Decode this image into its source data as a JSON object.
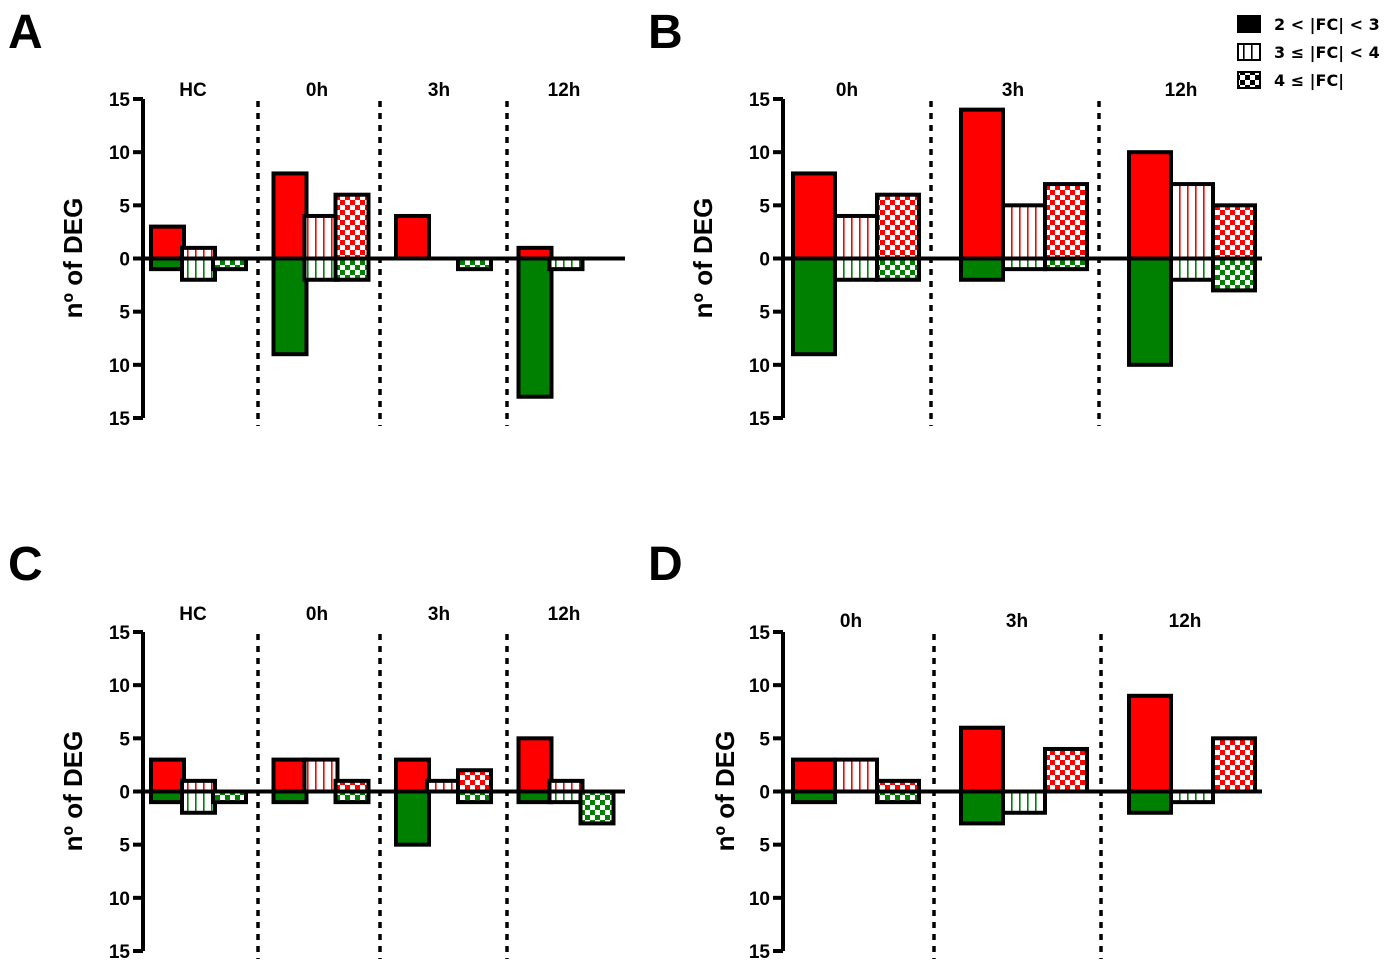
{
  "legend": {
    "position": "top-right",
    "items": [
      {
        "label": "2 < |FC| < 3",
        "pattern": "solid"
      },
      {
        "label": "3 ≤ |FC| < 4",
        "pattern": "vstripe"
      },
      {
        "label": "4 ≤ |FC|",
        "pattern": "checker"
      }
    ]
  },
  "colors": {
    "up": "#ff0000",
    "down": "#008000",
    "outline": "#000000"
  },
  "chart_data": [
    {
      "type": "bar",
      "panel": "A",
      "ylabel": "nº of DEG",
      "ylim": [
        -15,
        15
      ],
      "yticks": [
        "15",
        "10",
        "5",
        "0",
        "5",
        "10",
        "15"
      ],
      "groups": [
        "HC",
        "0h",
        "3h",
        "12h"
      ],
      "series": [
        {
          "name": "2 < |FC| < 3",
          "up": [
            3,
            8,
            4,
            1
          ],
          "down": [
            -1,
            -9,
            0,
            -13
          ]
        },
        {
          "name": "3 ≤ |FC| < 4",
          "up": [
            1,
            4,
            0,
            0
          ],
          "down": [
            -2,
            -2,
            0,
            -1
          ]
        },
        {
          "name": "4 ≤ |FC|",
          "up": [
            0,
            6,
            0,
            0
          ],
          "down": [
            -1,
            -2,
            -1,
            0
          ]
        }
      ]
    },
    {
      "type": "bar",
      "panel": "B",
      "ylabel": "nº of DEG",
      "ylim": [
        -15,
        15
      ],
      "yticks": [
        "15",
        "10",
        "5",
        "0",
        "5",
        "10",
        "15"
      ],
      "groups": [
        "0h",
        "3h",
        "12h"
      ],
      "series": [
        {
          "name": "2 < |FC| < 3",
          "up": [
            8,
            14,
            10
          ],
          "down": [
            -9,
            -2,
            -10
          ]
        },
        {
          "name": "3 ≤ |FC| < 4",
          "up": [
            4,
            5,
            7
          ],
          "down": [
            -2,
            -1,
            -2
          ]
        },
        {
          "name": "4 ≤ |FC|",
          "up": [
            6,
            7,
            5
          ],
          "down": [
            -2,
            -1,
            -3
          ]
        }
      ]
    },
    {
      "type": "bar",
      "panel": "C",
      "ylabel": "nº of DEG",
      "ylim": [
        -15,
        15
      ],
      "yticks": [
        "15",
        "10",
        "5",
        "0",
        "5",
        "10",
        "15"
      ],
      "groups": [
        "HC",
        "0h",
        "3h",
        "12h"
      ],
      "series": [
        {
          "name": "2 < |FC| < 3",
          "up": [
            3,
            3,
            3,
            5
          ],
          "down": [
            -1,
            -1,
            -5,
            -1
          ]
        },
        {
          "name": "3 ≤ |FC| < 4",
          "up": [
            1,
            3,
            1,
            1
          ],
          "down": [
            -2,
            0,
            0,
            -1
          ]
        },
        {
          "name": "4 ≤ |FC|",
          "up": [
            0,
            1,
            2,
            0
          ],
          "down": [
            -1,
            -1,
            -1,
            -3
          ]
        }
      ]
    },
    {
      "type": "bar",
      "panel": "D",
      "ylabel": "nº of DEG",
      "ylim": [
        -15,
        15
      ],
      "yticks": [
        "15",
        "10",
        "5",
        "0",
        "5",
        "10",
        "15"
      ],
      "groups": [
        "0h",
        "3h",
        "12h"
      ],
      "series": [
        {
          "name": "2 < |FC| < 3",
          "up": [
            3,
            6,
            9
          ],
          "down": [
            -1,
            -3,
            -2
          ]
        },
        {
          "name": "3 ≤ |FC| < 4",
          "up": [
            3,
            0,
            0
          ],
          "down": [
            0,
            -2,
            -1
          ]
        },
        {
          "name": "4 ≤ |FC|",
          "up": [
            1,
            4,
            5
          ],
          "down": [
            -1,
            0,
            0
          ]
        }
      ]
    }
  ]
}
